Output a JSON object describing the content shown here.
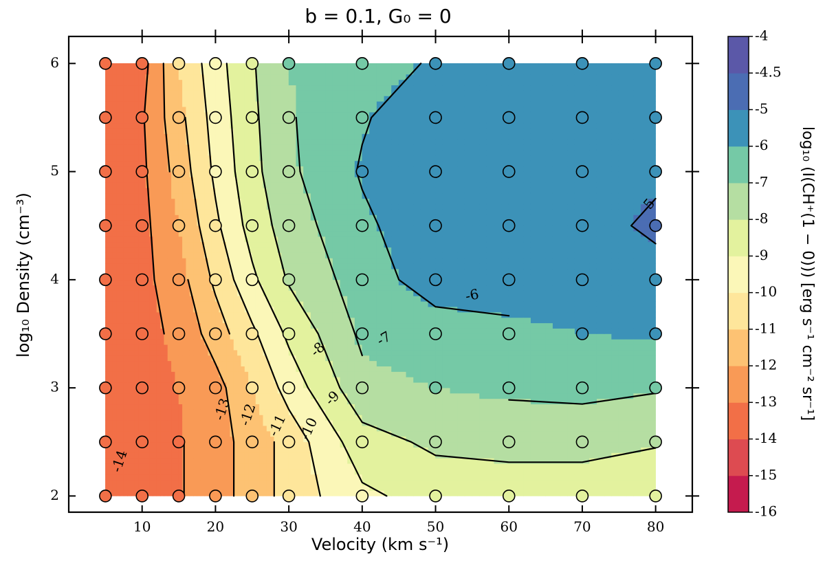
{
  "chart_data": {
    "type": "contour",
    "title": "b = 0.1,  G₀ = 0",
    "xlabel": "Velocity (km s⁻¹)",
    "ylabel": "log₁₀ Density (cm⁻³)",
    "xlim": [
      0,
      85
    ],
    "ylim": [
      1.85,
      6.25
    ],
    "x": [
      5,
      10,
      15,
      20,
      25,
      30,
      40,
      50,
      60,
      70,
      80
    ],
    "y": [
      2,
      2.5,
      3,
      3.5,
      4,
      4.5,
      5,
      5.5,
      6
    ],
    "x_ticks": [
      10,
      20,
      30,
      40,
      50,
      60,
      70,
      80
    ],
    "y_ticks": [
      2,
      3,
      4,
      5,
      6
    ],
    "colorbar": {
      "label": "log₁₀ (I(CH⁺(1 − 0))) [erg s⁻¹ cm⁻² sr⁻¹]",
      "levels": [
        -16,
        -15,
        -14,
        -13,
        -12,
        -11,
        -10,
        -9,
        -8,
        -7,
        -6,
        -5,
        -4.5,
        -4
      ],
      "tick_labels": [
        "-4",
        "-4.5",
        "-5",
        "-6",
        "-7",
        "-8",
        "-9",
        "-10",
        "-11",
        "-12",
        "-13",
        "-14",
        "-15",
        "-16"
      ],
      "colors": [
        "#c51b4e",
        "#dd4b51",
        "#f26f47",
        "#f99a56",
        "#fdc273",
        "#fee69b",
        "#fbf7b8",
        "#e3f29e",
        "#b5dea2",
        "#75c9a6",
        "#3c92b8",
        "#4b6db3",
        "#5b58a8"
      ]
    },
    "contour_labels": [
      "-5",
      "-6",
      "-7",
      "-8",
      "-9",
      "-10",
      "-11",
      "-12",
      "-13",
      "-14"
    ],
    "z": [
      [
        -13.4,
        -13.3,
        -13.1,
        -12.4,
        -11.6,
        -10.6,
        -9.2,
        -8.6,
        -8.5,
        -8.5,
        -8.8
      ],
      [
        -13.5,
        -13.3,
        -13.1,
        -12.4,
        -11.6,
        -10.6,
        -8.4,
        -7.8,
        -7.7,
        -7.7,
        -7.9
      ],
      [
        -13.5,
        -13.3,
        -13.0,
        -12.4,
        -11.0,
        -9.6,
        -7.3,
        -7.0,
        -6.8,
        -6.7,
        -6.9
      ],
      [
        -13.4,
        -13.3,
        -12.8,
        -11.5,
        -10.2,
        -8.8,
        -6.8,
        -6.5,
        -6.3,
        -6.0,
        -5.9
      ],
      [
        -13.4,
        -13.3,
        -12.4,
        -10.8,
        -9.2,
        -7.9,
        -6.5,
        -5.5,
        -5.4,
        -5.3,
        -5.2
      ],
      [
        -13.3,
        -13.3,
        -12.0,
        -10.2,
        -8.6,
        -7.5,
        -6.2,
        -5.3,
        -5.2,
        -5.2,
        -4.9
      ],
      [
        -13.3,
        -13.2,
        -11.6,
        -9.8,
        -8.3,
        -7.2,
        -5.9,
        -5.2,
        -5.2,
        -5.1,
        -5.1
      ],
      [
        -13.3,
        -13.1,
        -11.3,
        -9.6,
        -8.2,
        -7.1,
        -6.1,
        -5.3,
        -5.2,
        -5.2,
        -5.3
      ],
      [
        -13.4,
        -13.4,
        -11.0,
        -9.4,
        -8.1,
        -7.0,
        -6.4,
        -5.9,
        -5.3,
        -5.2,
        -5.3
      ]
    ]
  }
}
